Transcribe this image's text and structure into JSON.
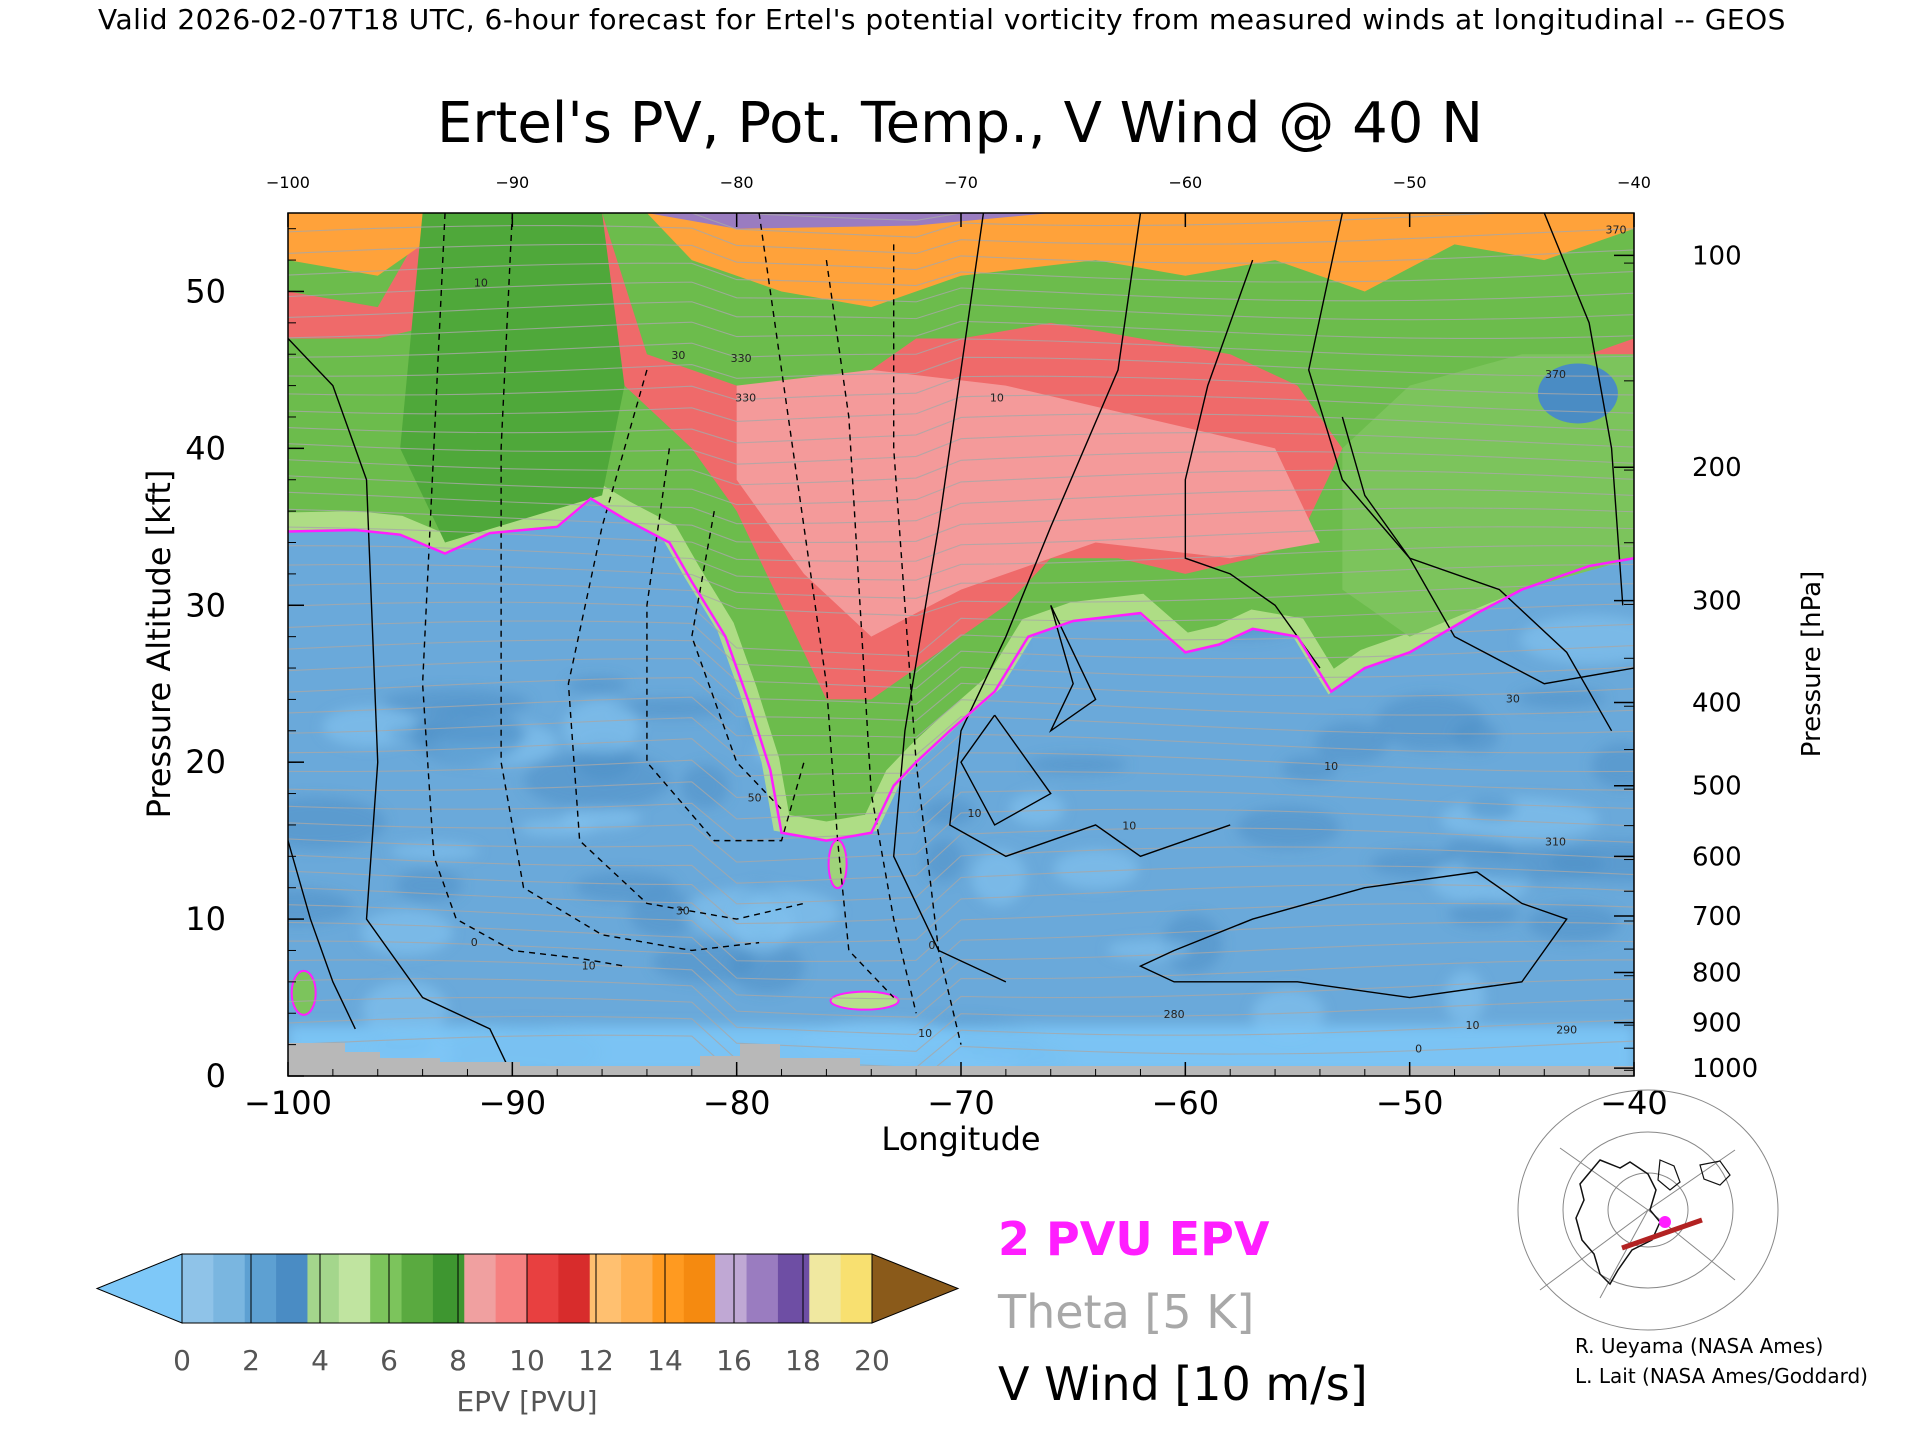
{
  "header": {
    "banner": "Valid 2026-02-07T18 UTC, 6-hour forecast for Ertel's potential vorticity from measured winds at longitudinal -- GEOS"
  },
  "chart_data": {
    "type": "heatmap",
    "title": "Ertel's PV, Pot. Temp., V Wind @ 40 N",
    "xlabel": "Longitude",
    "ylabel": "Pressure Altitude [kft]",
    "y2label": "Pressure [hPa]",
    "xlim": [
      -100,
      -40
    ],
    "ylim": [
      0,
      55
    ],
    "x_ticks": [
      -100,
      -90,
      -80,
      -70,
      -60,
      -50,
      -40
    ],
    "x_tick_labels": [
      "−100",
      "−90",
      "−80",
      "−70",
      "−60",
      "−50",
      "−40"
    ],
    "top_x_tick_labels": [
      "−100",
      "−90",
      "−80",
      "−70",
      "−60",
      "−50",
      "−40"
    ],
    "y_ticks": [
      0,
      10,
      20,
      30,
      40,
      50
    ],
    "y_tick_labels": [
      "0",
      "10",
      "20",
      "30",
      "40",
      "50"
    ],
    "pressure_ticks": [
      {
        "hpa": 100,
        "kft": 52.3,
        "label": "100"
      },
      {
        "hpa": 200,
        "kft": 38.8,
        "label": "200"
      },
      {
        "hpa": 300,
        "kft": 30.3,
        "label": "300"
      },
      {
        "hpa": 400,
        "kft": 23.8,
        "label": "400"
      },
      {
        "hpa": 500,
        "kft": 18.5,
        "label": "500"
      },
      {
        "hpa": 600,
        "kft": 14.0,
        "label": "600"
      },
      {
        "hpa": 700,
        "kft": 10.2,
        "label": "700"
      },
      {
        "hpa": 800,
        "kft": 6.6,
        "label": "800"
      },
      {
        "hpa": 900,
        "kft": 3.4,
        "label": "900"
      },
      {
        "hpa": 1000,
        "kft": 0.5,
        "label": "1000"
      }
    ],
    "tropopause_2pvu_kft": [
      [
        -100,
        34.7
      ],
      [
        -97,
        34.8
      ],
      [
        -95,
        34.5
      ],
      [
        -93,
        33.3
      ],
      [
        -91,
        34.6
      ],
      [
        -88,
        35.0
      ],
      [
        -86.5,
        36.8
      ],
      [
        -85,
        35.5
      ],
      [
        -83,
        34.0
      ],
      [
        -82,
        31.5
      ],
      [
        -80.5,
        28.0
      ],
      [
        -79.5,
        24.0
      ],
      [
        -78.5,
        19.5
      ],
      [
        -78,
        15.5
      ],
      [
        -76,
        15.0
      ],
      [
        -74,
        15.5
      ],
      [
        -73,
        18.5
      ],
      [
        -72,
        20.0
      ],
      [
        -70.5,
        22.0
      ],
      [
        -68.5,
        24.5
      ],
      [
        -67,
        28.0
      ],
      [
        -65,
        29.0
      ],
      [
        -62,
        29.5
      ],
      [
        -60,
        27.0
      ],
      [
        -58.5,
        27.5
      ],
      [
        -57,
        28.5
      ],
      [
        -55,
        28.0
      ],
      [
        -53.5,
        24.5
      ],
      [
        -52,
        26.0
      ],
      [
        -50,
        27.0
      ],
      [
        -47,
        29.5
      ],
      [
        -45,
        31.0
      ],
      [
        -42,
        32.5
      ],
      [
        -40,
        33.0
      ]
    ],
    "upper_layers_kft": {
      "green_to_red_top": [
        [
          -100,
          50
        ],
        [
          -96,
          49
        ],
        [
          -94,
          54
        ],
        [
          -90,
          55
        ],
        [
          -86,
          55
        ],
        [
          -84,
          46
        ],
        [
          -82,
          45
        ],
        [
          -80,
          44
        ],
        [
          -78,
          43
        ],
        [
          -76,
          44
        ],
        [
          -74,
          45
        ],
        [
          -72,
          47
        ],
        [
          -70,
          47
        ],
        [
          -66,
          48
        ],
        [
          -62,
          47
        ],
        [
          -58,
          46
        ],
        [
          -55,
          44
        ],
        [
          -52,
          38
        ],
        [
          -50,
          35
        ],
        [
          -47,
          38
        ],
        [
          -44,
          43
        ],
        [
          -42,
          46
        ],
        [
          -40,
          47
        ]
      ]
    },
    "colorbar": {
      "label": "EPV [PVU]",
      "tick_labels": [
        "0",
        "2",
        "4",
        "6",
        "8",
        "10",
        "12",
        "14",
        "16",
        "18",
        "20"
      ],
      "under_color": "#7ec8f8",
      "over_color": "#8a5a1a",
      "colors": [
        "#8fc3e8",
        "#7ab6e0",
        "#5da0d2",
        "#4a8cc4",
        "#a4d68c",
        "#c0e4a0",
        "#7cc45c",
        "#5aaa40",
        "#3e9630",
        "#f0a0a0",
        "#f58080",
        "#e84040",
        "#d82c2c",
        "#ffc070",
        "#ffb050",
        "#ff9a20",
        "#f58a10",
        "#c0a8d4",
        "#9a7cc0",
        "#6e4ea4",
        "#f0e8a0",
        "#f8e070"
      ]
    },
    "legend": [
      {
        "label": "2 PVU EPV",
        "color": "#ff1eff"
      },
      {
        "label": "Theta [5 K]",
        "color": "#a8a8a8"
      },
      {
        "label": "V Wind [10 m/s]",
        "color": "#000000"
      }
    ],
    "contour_labels": [
      {
        "x": -91.4,
        "y": 50.3,
        "text": "10"
      },
      {
        "x": -82.6,
        "y": 45.7,
        "text": "30"
      },
      {
        "x": -79.8,
        "y": 45.5,
        "text": "330"
      },
      {
        "x": -79.6,
        "y": 43.0,
        "text": "330"
      },
      {
        "x": -68.4,
        "y": 43.0,
        "text": "10"
      },
      {
        "x": -79.2,
        "y": 17.5,
        "text": "50"
      },
      {
        "x": -82.4,
        "y": 10.3,
        "text": "30"
      },
      {
        "x": -86.6,
        "y": 6.8,
        "text": "10"
      },
      {
        "x": -91.7,
        "y": 8.3,
        "text": "0"
      },
      {
        "x": -69.4,
        "y": 16.5,
        "text": "10"
      },
      {
        "x": -62.5,
        "y": 15.7,
        "text": "10"
      },
      {
        "x": -53.5,
        "y": 19.5,
        "text": "10"
      },
      {
        "x": -45.4,
        "y": 23.8,
        "text": "30"
      },
      {
        "x": -71.3,
        "y": 8.1,
        "text": "0"
      },
      {
        "x": -49.6,
        "y": 1.5,
        "text": "0"
      },
      {
        "x": -47.2,
        "y": 3.0,
        "text": "10"
      },
      {
        "x": -71.6,
        "y": 2.5,
        "text": "10"
      },
      {
        "x": -60.5,
        "y": 3.7,
        "text": "280"
      },
      {
        "x": -43.0,
        "y": 2.7,
        "text": "290"
      },
      {
        "x": -43.5,
        "y": 14.7,
        "text": "310"
      },
      {
        "x": -43.5,
        "y": 44.5,
        "text": "370"
      },
      {
        "x": -40.8,
        "y": 53.7,
        "text": "370"
      }
    ],
    "map_inset": {
      "description_label": "",
      "cross_section_color": "#b22222",
      "marker_color": "#ff1eff"
    }
  },
  "credits": [
    "R. Ueyama (NASA Ames)",
    "L. Lait (NASA Ames/Goddard)"
  ]
}
